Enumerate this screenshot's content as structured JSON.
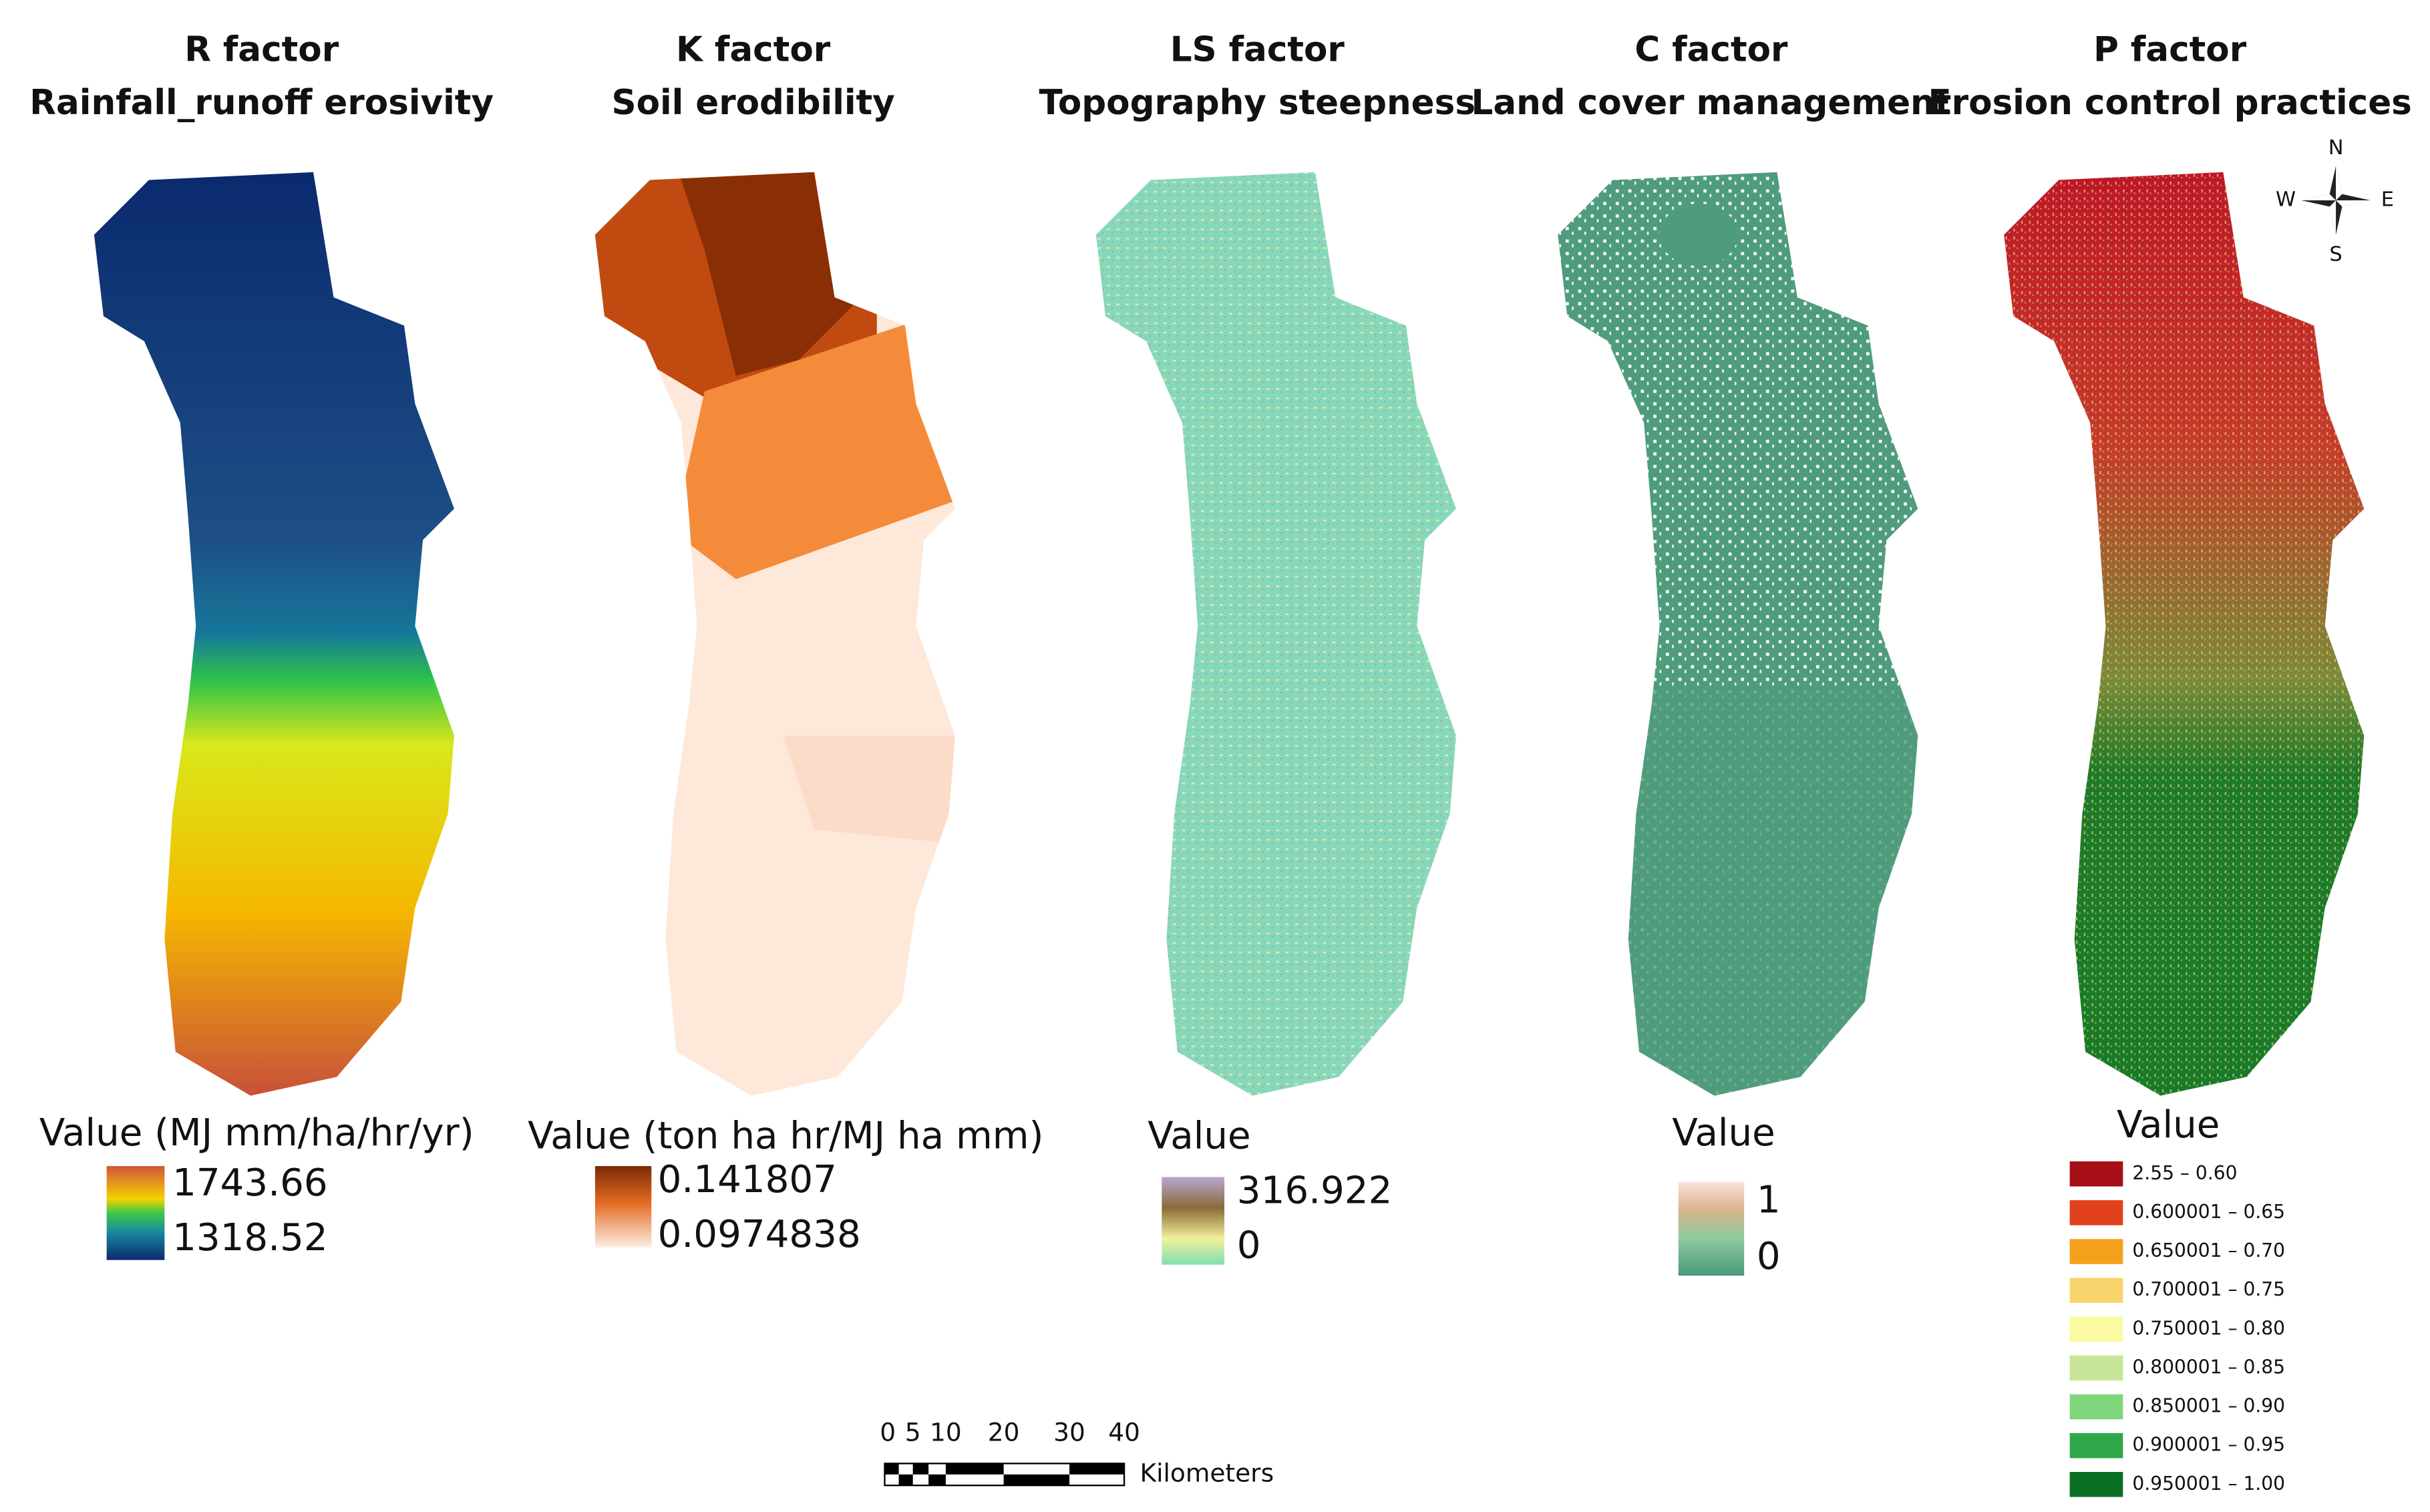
{
  "panels": [
    {
      "title": "R factor",
      "subtitle": "Rainfall_runoff erosivity",
      "legend_title": "Value (MJ mm/ha/hr/yr)",
      "legend_labels": [
        "1743.66",
        "1318.52"
      ]
    },
    {
      "title": "K factor",
      "subtitle": "Soil erodibility",
      "legend_title": "Value (ton ha hr/MJ ha mm)",
      "legend_labels": [
        "0.141807",
        "0.0974838"
      ]
    },
    {
      "title": "LS factor",
      "subtitle": "Topography steepness",
      "legend_title": "Value",
      "legend_labels": [
        "316.922",
        "0"
      ]
    },
    {
      "title": "C factor",
      "subtitle": "Land cover management",
      "legend_title": "Value",
      "legend_labels": [
        "1",
        "0"
      ]
    },
    {
      "title": "P factor",
      "subtitle": "Erosion control practices",
      "legend_title": "Value",
      "legend_labels": []
    }
  ],
  "p_legend": [
    {
      "label": "2.55 – 0.60",
      "color": "#a50f15"
    },
    {
      "label": "0.600001 – 0.65",
      "color": "#e0401a"
    },
    {
      "label": "0.650001 – 0.70",
      "color": "#f5a01a"
    },
    {
      "label": "0.700001 – 0.75",
      "color": "#f9d36b"
    },
    {
      "label": "0.750001 – 0.80",
      "color": "#fafaa0"
    },
    {
      "label": "0.800001 – 0.85",
      "color": "#c7e69a"
    },
    {
      "label": "0.850001 – 0.90",
      "color": "#7fd67a"
    },
    {
      "label": "0.900001 – 0.95",
      "color": "#2ea84a"
    },
    {
      "label": "0.950001 – 1.00",
      "color": "#0a6e23"
    }
  ],
  "compass": {
    "north": "N",
    "west": "W",
    "east": "E",
    "south": "S"
  },
  "scale_bar": {
    "ticks": [
      "0",
      "5",
      "10",
      "20",
      "30",
      "40"
    ],
    "unit": "Kilometers"
  }
}
